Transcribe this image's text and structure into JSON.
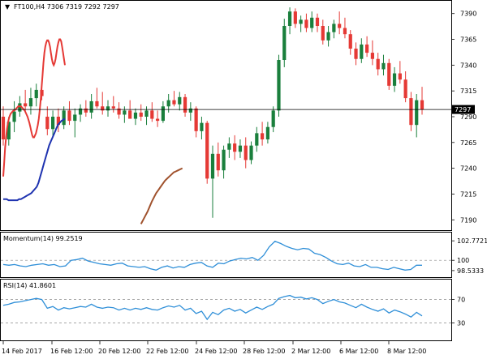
{
  "header": {
    "symbol_line": "FT100,H4  7306 7319 7292 7297"
  },
  "momentum_label": "Momentum(14) 99.2519",
  "rsi_label": "RSI(14) 41.8601",
  "price_tag": "7297",
  "colors": {
    "bull": "#1a7f3c",
    "bear": "#e53935",
    "ma_fast": "#e53935",
    "ma_mid": "#1f33b0",
    "ma_slow": "#a0522d",
    "osc": "#2f8fd8"
  },
  "chart_data": [
    {
      "type": "candlestick",
      "title": "FT100,H4  7306 7319 7292 7297",
      "ylim": [
        7180,
        7400
      ],
      "yticks": [
        "7390",
        "7365",
        "7340",
        "7315",
        "7290",
        "7265",
        "7240",
        "7215",
        "7190"
      ],
      "xticks": [
        "14 Feb 2017",
        "16 Feb 12:00",
        "20 Feb 12:00",
        "22 Feb 12:00",
        "24 Feb 12:00",
        "28 Feb 12:00",
        "2 Mar 12:00",
        "6 Mar 12:00",
        "8 Mar 12:00"
      ],
      "last_price": 7297,
      "candles": [
        {
          "o": 7290,
          "h": 7300,
          "l": 7262,
          "c": 7268
        },
        {
          "o": 7268,
          "h": 7290,
          "l": 7262,
          "c": 7285
        },
        {
          "o": 7285,
          "h": 7305,
          "l": 7275,
          "c": 7295
        },
        {
          "o": 7295,
          "h": 7310,
          "l": 7290,
          "c": 7303
        },
        {
          "o": 7303,
          "h": 7316,
          "l": 7295,
          "c": 7300
        },
        {
          "o": 7300,
          "h": 7318,
          "l": 7292,
          "c": 7308
        },
        {
          "o": 7308,
          "h": 7322,
          "l": 7300,
          "c": 7316
        },
        {
          "o": 7316,
          "h": 7320,
          "l": 7306,
          "c": 7310
        },
        {
          "o": 7290,
          "h": 7300,
          "l": 7272,
          "c": 7278
        },
        {
          "o": 7278,
          "h": 7296,
          "l": 7270,
          "c": 7290
        },
        {
          "o": 7290,
          "h": 7298,
          "l": 7275,
          "c": 7282
        },
        {
          "o": 7282,
          "h": 7300,
          "l": 7278,
          "c": 7296
        },
        {
          "o": 7296,
          "h": 7305,
          "l": 7282,
          "c": 7286
        },
        {
          "o": 7286,
          "h": 7298,
          "l": 7270,
          "c": 7292
        },
        {
          "o": 7292,
          "h": 7302,
          "l": 7285,
          "c": 7298
        },
        {
          "o": 7298,
          "h": 7306,
          "l": 7290,
          "c": 7294
        },
        {
          "o": 7294,
          "h": 7312,
          "l": 7288,
          "c": 7305
        },
        {
          "o": 7305,
          "h": 7318,
          "l": 7298,
          "c": 7300
        },
        {
          "o": 7300,
          "h": 7314,
          "l": 7292,
          "c": 7296
        },
        {
          "o": 7296,
          "h": 7306,
          "l": 7290,
          "c": 7300
        },
        {
          "o": 7300,
          "h": 7310,
          "l": 7294,
          "c": 7298
        },
        {
          "o": 7298,
          "h": 7304,
          "l": 7288,
          "c": 7292
        },
        {
          "o": 7292,
          "h": 7300,
          "l": 7284,
          "c": 7296
        },
        {
          "o": 7296,
          "h": 7306,
          "l": 7290,
          "c": 7288
        },
        {
          "o": 7288,
          "h": 7298,
          "l": 7282,
          "c": 7294
        },
        {
          "o": 7294,
          "h": 7302,
          "l": 7286,
          "c": 7290
        },
        {
          "o": 7290,
          "h": 7300,
          "l": 7282,
          "c": 7296
        },
        {
          "o": 7296,
          "h": 7304,
          "l": 7285,
          "c": 7288
        },
        {
          "o": 7288,
          "h": 7296,
          "l": 7280,
          "c": 7286
        },
        {
          "o": 7286,
          "h": 7305,
          "l": 7284,
          "c": 7300
        },
        {
          "o": 7300,
          "h": 7312,
          "l": 7294,
          "c": 7306
        },
        {
          "o": 7306,
          "h": 7315,
          "l": 7300,
          "c": 7302
        },
        {
          "o": 7302,
          "h": 7314,
          "l": 7296,
          "c": 7309
        },
        {
          "o": 7309,
          "h": 7312,
          "l": 7290,
          "c": 7294
        },
        {
          "o": 7294,
          "h": 7304,
          "l": 7286,
          "c": 7298
        },
        {
          "o": 7298,
          "h": 7300,
          "l": 7270,
          "c": 7276
        },
        {
          "o": 7276,
          "h": 7290,
          "l": 7268,
          "c": 7284
        },
        {
          "o": 7284,
          "h": 7286,
          "l": 7225,
          "c": 7230
        },
        {
          "o": 7230,
          "h": 7262,
          "l": 7192,
          "c": 7254
        },
        {
          "o": 7254,
          "h": 7265,
          "l": 7232,
          "c": 7238
        },
        {
          "o": 7238,
          "h": 7262,
          "l": 7230,
          "c": 7258
        },
        {
          "o": 7258,
          "h": 7270,
          "l": 7250,
          "c": 7264
        },
        {
          "o": 7264,
          "h": 7272,
          "l": 7248,
          "c": 7256
        },
        {
          "o": 7256,
          "h": 7268,
          "l": 7250,
          "c": 7262
        },
        {
          "o": 7262,
          "h": 7270,
          "l": 7240,
          "c": 7248
        },
        {
          "o": 7248,
          "h": 7266,
          "l": 7244,
          "c": 7262
        },
        {
          "o": 7262,
          "h": 7280,
          "l": 7256,
          "c": 7274
        },
        {
          "o": 7274,
          "h": 7285,
          "l": 7262,
          "c": 7268
        },
        {
          "o": 7268,
          "h": 7285,
          "l": 7264,
          "c": 7280
        },
        {
          "o": 7280,
          "h": 7300,
          "l": 7275,
          "c": 7296
        },
        {
          "o": 7296,
          "h": 7350,
          "l": 7290,
          "c": 7345
        },
        {
          "o": 7345,
          "h": 7385,
          "l": 7338,
          "c": 7378
        },
        {
          "o": 7378,
          "h": 7396,
          "l": 7370,
          "c": 7392
        },
        {
          "o": 7392,
          "h": 7395,
          "l": 7376,
          "c": 7380
        },
        {
          "o": 7380,
          "h": 7388,
          "l": 7372,
          "c": 7384
        },
        {
          "o": 7384,
          "h": 7390,
          "l": 7372,
          "c": 7376
        },
        {
          "o": 7376,
          "h": 7392,
          "l": 7372,
          "c": 7386
        },
        {
          "o": 7386,
          "h": 7390,
          "l": 7372,
          "c": 7378
        },
        {
          "o": 7378,
          "h": 7384,
          "l": 7360,
          "c": 7364
        },
        {
          "o": 7364,
          "h": 7378,
          "l": 7358,
          "c": 7372
        },
        {
          "o": 7372,
          "h": 7384,
          "l": 7366,
          "c": 7380
        },
        {
          "o": 7380,
          "h": 7392,
          "l": 7370,
          "c": 7376
        },
        {
          "o": 7376,
          "h": 7386,
          "l": 7366,
          "c": 7370
        },
        {
          "o": 7370,
          "h": 7374,
          "l": 7350,
          "c": 7356
        },
        {
          "o": 7356,
          "h": 7362,
          "l": 7340,
          "c": 7346
        },
        {
          "o": 7346,
          "h": 7366,
          "l": 7342,
          "c": 7360
        },
        {
          "o": 7360,
          "h": 7368,
          "l": 7348,
          "c": 7352
        },
        {
          "o": 7352,
          "h": 7364,
          "l": 7340,
          "c": 7346
        },
        {
          "o": 7346,
          "h": 7352,
          "l": 7330,
          "c": 7336
        },
        {
          "o": 7336,
          "h": 7350,
          "l": 7330,
          "c": 7342
        },
        {
          "o": 7342,
          "h": 7346,
          "l": 7316,
          "c": 7320
        },
        {
          "o": 7320,
          "h": 7338,
          "l": 7314,
          "c": 7332
        },
        {
          "o": 7332,
          "h": 7344,
          "l": 7322,
          "c": 7326
        },
        {
          "o": 7326,
          "h": 7334,
          "l": 7304,
          "c": 7308
        },
        {
          "o": 7308,
          "h": 7314,
          "l": 7276,
          "c": 7282
        },
        {
          "o": 7282,
          "h": 7312,
          "l": 7270,
          "c": 7306
        },
        {
          "o": 7306,
          "h": 7319,
          "l": 7292,
          "c": 7297
        }
      ],
      "series": [
        {
          "name": "",
          "color": "#e53935",
          "values": [
            7232,
            7246,
            7260,
            7270,
            7278,
            7284,
            7288,
            7291,
            7293,
            7294,
            7295,
            7296,
            7296,
            7297,
            7298,
            7299,
            7300,
            7300,
            7300,
            7300,
            7299,
            7298,
            7297,
            7296,
            7294,
            7292,
            7290,
            7287,
            7284,
            7280,
            7276,
            7272,
            7270,
            7270,
            7272,
            7274,
            7278,
            7282,
            7288,
            7296,
            7306,
            7318,
            7330,
            7342,
            7352,
            7358,
            7362,
            7364,
            7364,
            7362,
            7358,
            7352,
            7346,
            7342,
            7340,
            7342,
            7346,
            7352,
            7358,
            7362,
            7365,
            7365,
            7363,
            7358,
            7352,
            7346,
            7340
          ]
        },
        {
          "name": "",
          "color": "#1f33b0",
          "values": [
            7210,
            7210,
            7210,
            7209,
            7209,
            7209,
            7209,
            7209,
            7209,
            7210,
            7210,
            7211,
            7212,
            7213,
            7214,
            7215,
            7216,
            7218,
            7220,
            7222,
            7226,
            7232,
            7238,
            7244,
            7250,
            7256,
            7262,
            7266,
            7270,
            7274,
            7278,
            7282,
            7284,
            7286,
            7287,
            7288
          ]
        },
        {
          "name": "",
          "color": "#a0522d",
          "values": [
            7186,
            7190,
            7194,
            7198,
            7203,
            7208,
            7212,
            7216,
            7219,
            7222,
            7225,
            7228,
            7230,
            7232,
            7234,
            7236,
            7237,
            7238,
            7239,
            7240
          ]
        }
      ]
    },
    {
      "type": "line",
      "title": "Momentum(14) 99.2519",
      "ylim": [
        97.6,
        103.6
      ],
      "yticks": [
        "102.7721",
        "100",
        "98.5333"
      ],
      "series": [
        {
          "name": "Momentum(14)",
          "values": [
            99.4,
            99.3,
            99.4,
            99.2,
            99.1,
            99.3,
            99.4,
            99.5,
            99.3,
            99.4,
            99.1,
            99.2,
            100.0,
            100.1,
            100.3,
            99.9,
            99.7,
            99.5,
            99.4,
            99.3,
            99.5,
            99.6,
            99.2,
            99.1,
            99.0,
            99.1,
            98.8,
            98.6,
            99.0,
            99.2,
            98.9,
            99.1,
            99.0,
            99.4,
            99.6,
            99.7,
            99.2,
            99.0,
            99.6,
            99.5,
            99.9,
            100.1,
            100.3,
            100.2,
            100.4,
            100.0,
            100.7,
            101.9,
            102.7,
            102.4,
            102.0,
            101.7,
            101.5,
            101.7,
            101.6,
            101.0,
            100.8,
            100.4,
            99.9,
            99.5,
            99.4,
            99.6,
            99.2,
            99.1,
            99.4,
            99.0,
            99.0,
            98.8,
            98.7,
            99.0,
            98.8,
            98.6,
            98.7,
            99.3,
            99.3
          ]
        }
      ]
    },
    {
      "type": "line",
      "title": "RSI(14) 41.8601",
      "ylim": [
        0,
        100
      ],
      "yticks": [
        "70",
        "30"
      ],
      "series": [
        {
          "name": "RSI(14)",
          "values": [
            60,
            62,
            65,
            66,
            68,
            70,
            72,
            70,
            55,
            58,
            52,
            56,
            54,
            56,
            58,
            57,
            62,
            57,
            55,
            57,
            56,
            52,
            55,
            52,
            55,
            53,
            56,
            53,
            52,
            56,
            59,
            57,
            60,
            52,
            55,
            46,
            50,
            36,
            48,
            44,
            52,
            55,
            50,
            53,
            47,
            52,
            57,
            53,
            58,
            62,
            72,
            75,
            77,
            73,
            74,
            71,
            73,
            70,
            63,
            67,
            70,
            66,
            64,
            60,
            56,
            62,
            57,
            53,
            50,
            54,
            47,
            52,
            49,
            45,
            40,
            48,
            42
          ]
        }
      ]
    }
  ]
}
